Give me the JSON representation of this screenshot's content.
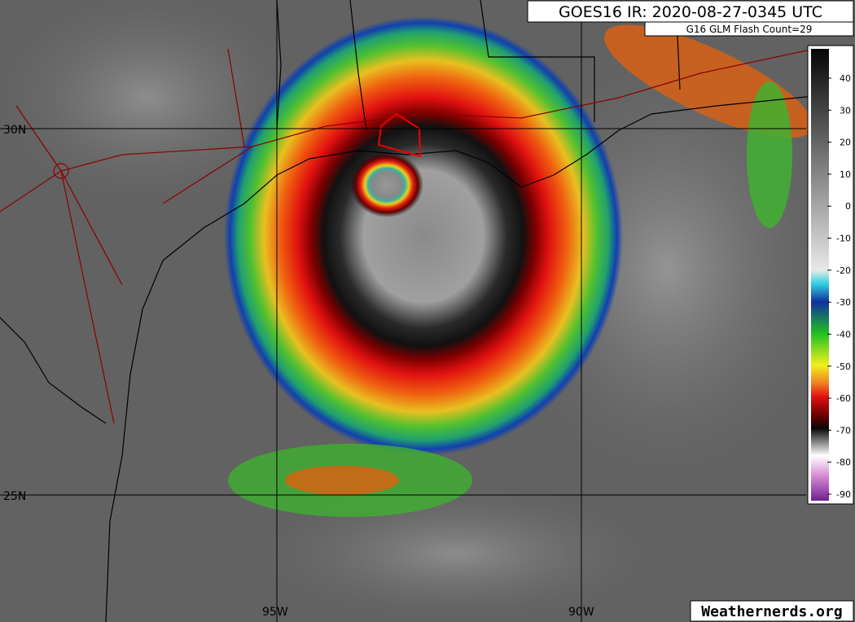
{
  "header": {
    "title": "GOES16 IR: 2020-08-27-0345 UTC",
    "subtitle": "G16 GLM Flash Count=29"
  },
  "colorbar": {
    "ticks": [
      40,
      30,
      20,
      10,
      0,
      -10,
      -20,
      -30,
      -40,
      -50,
      -60,
      -70,
      -80,
      -90
    ]
  },
  "grid_labels": {
    "latitudes": [
      "30N",
      "25N"
    ],
    "longitudes": [
      "95W",
      "90W"
    ]
  },
  "footer": {
    "credit": "Weathernerds.org"
  }
}
